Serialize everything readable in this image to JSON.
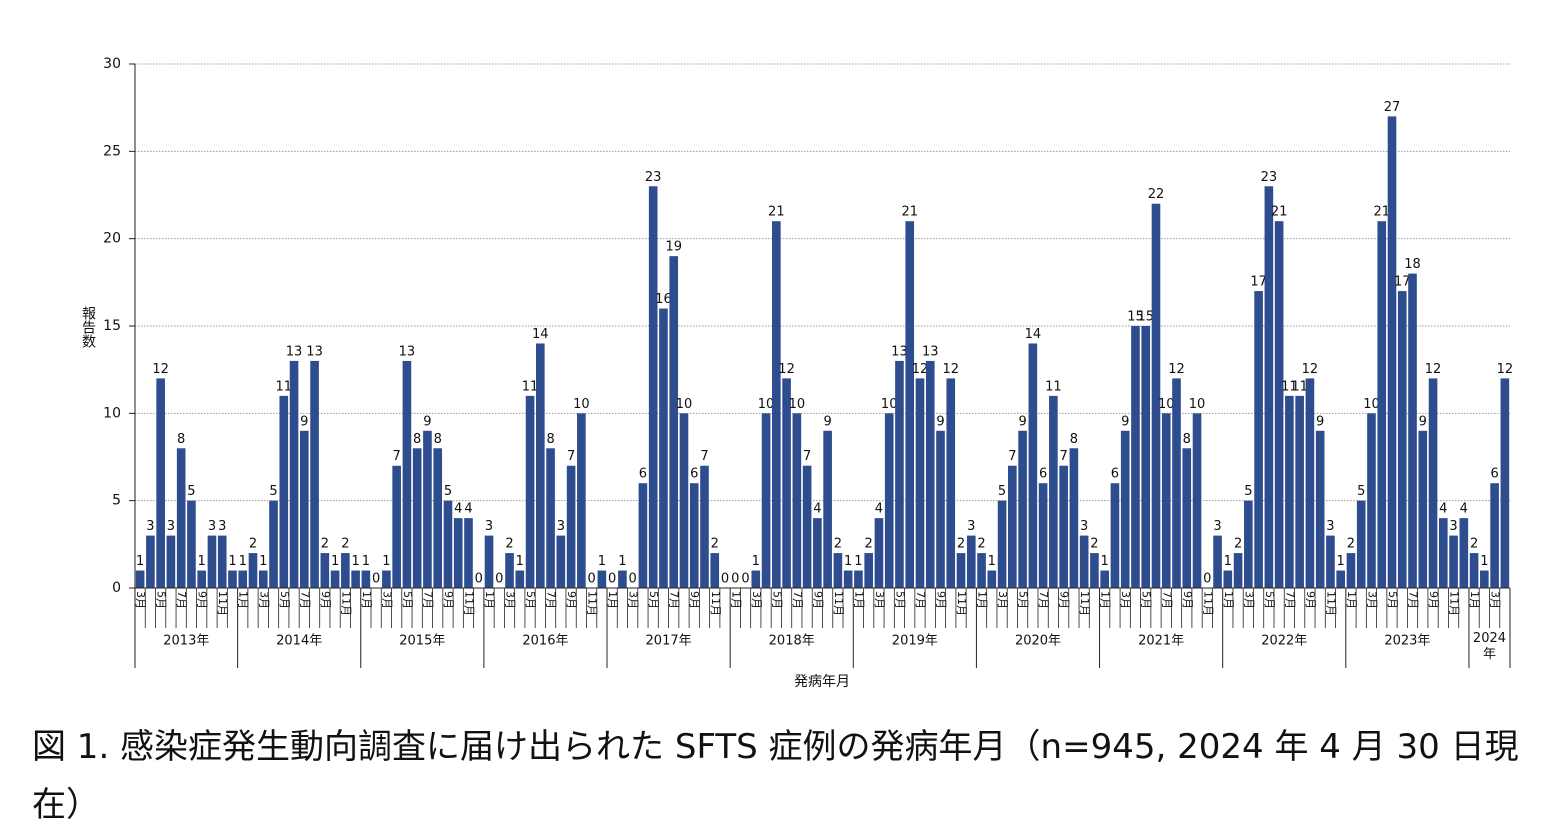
{
  "chart_data": {
    "type": "bar",
    "y_label": "報告数",
    "x_label": "発病年月",
    "caption": "図 1. 感染症発生動向調査に届け出られた SFTS 症例の発病年月（n=945, 2024 年 4 月 30 日現在）",
    "color": "#2e4d8f",
    "ylim": [
      0,
      30
    ],
    "yticks": [
      0,
      5,
      10,
      15,
      20,
      25,
      30
    ],
    "grid": true,
    "years": [
      "2013年",
      "2014年",
      "2015年",
      "2016年",
      "2017年",
      "2018年",
      "2019年",
      "2020年",
      "2021年",
      "2022年",
      "2023年",
      "2024\n年"
    ],
    "categories": [
      "3月",
      null,
      "5月",
      null,
      "7月",
      null,
      "9月",
      null,
      "11月",
      null,
      "1月",
      null,
      "3月",
      null,
      "5月",
      null,
      "7月",
      null,
      "9月",
      null,
      "11月",
      null,
      "1月",
      null,
      "3月",
      null,
      "5月",
      null,
      "7月",
      null,
      "9月",
      null,
      "11月",
      null,
      "1月",
      null,
      "3月",
      null,
      "5月",
      null,
      "7月",
      null,
      "9月",
      null,
      "11月",
      null,
      "1月",
      null,
      "3月",
      null,
      "5月",
      null,
      "7月",
      null,
      "9月",
      null,
      "11月",
      null,
      "1月",
      null,
      "3月",
      null,
      "5月",
      null,
      "7月",
      null,
      "9月",
      null,
      "11月",
      null,
      "1月",
      null,
      "3月",
      null,
      "5月",
      null,
      "7月",
      null,
      "9月",
      null,
      "11月",
      null,
      "1月",
      null,
      "3月",
      null,
      "5月",
      null,
      "7月",
      null,
      "9月",
      null,
      "11月",
      null,
      "1月",
      null,
      "3月",
      null,
      "5月",
      null,
      "7月",
      null,
      "9月",
      null,
      "11月",
      null,
      "1月",
      null,
      "3月",
      null,
      "5月",
      null,
      "7月",
      null,
      "9月",
      null,
      "11月",
      null,
      "1月",
      null,
      "3月",
      null,
      "5月",
      null,
      "7月",
      null,
      "9月",
      null,
      "11月",
      null,
      "1月",
      null,
      "3月",
      null
    ],
    "values": [
      1,
      3,
      12,
      3,
      8,
      5,
      1,
      3,
      3,
      1,
      1,
      2,
      1,
      5,
      11,
      13,
      9,
      13,
      2,
      1,
      2,
      1,
      1,
      0,
      1,
      7,
      13,
      8,
      9,
      8,
      5,
      4,
      4,
      0,
      3,
      0,
      2,
      1,
      11,
      14,
      8,
      3,
      7,
      10,
      0,
      1,
      0,
      1,
      0,
      6,
      23,
      16,
      19,
      10,
      6,
      7,
      2,
      0,
      0,
      0,
      1,
      10,
      21,
      12,
      10,
      7,
      4,
      9,
      2,
      1,
      1,
      2,
      4,
      10,
      13,
      21,
      12,
      13,
      9,
      12,
      2,
      3,
      2,
      1,
      5,
      7,
      9,
      14,
      6,
      11,
      7,
      8,
      3,
      2,
      1,
      6,
      9,
      15,
      15,
      22,
      10,
      12,
      8,
      10,
      0,
      3,
      1,
      2,
      5,
      17,
      23,
      21,
      11,
      11,
      12,
      9,
      3,
      1,
      2,
      5,
      10,
      21,
      27,
      17,
      18,
      9,
      12,
      4,
      3,
      4,
      2,
      1,
      6,
      12
    ]
  }
}
